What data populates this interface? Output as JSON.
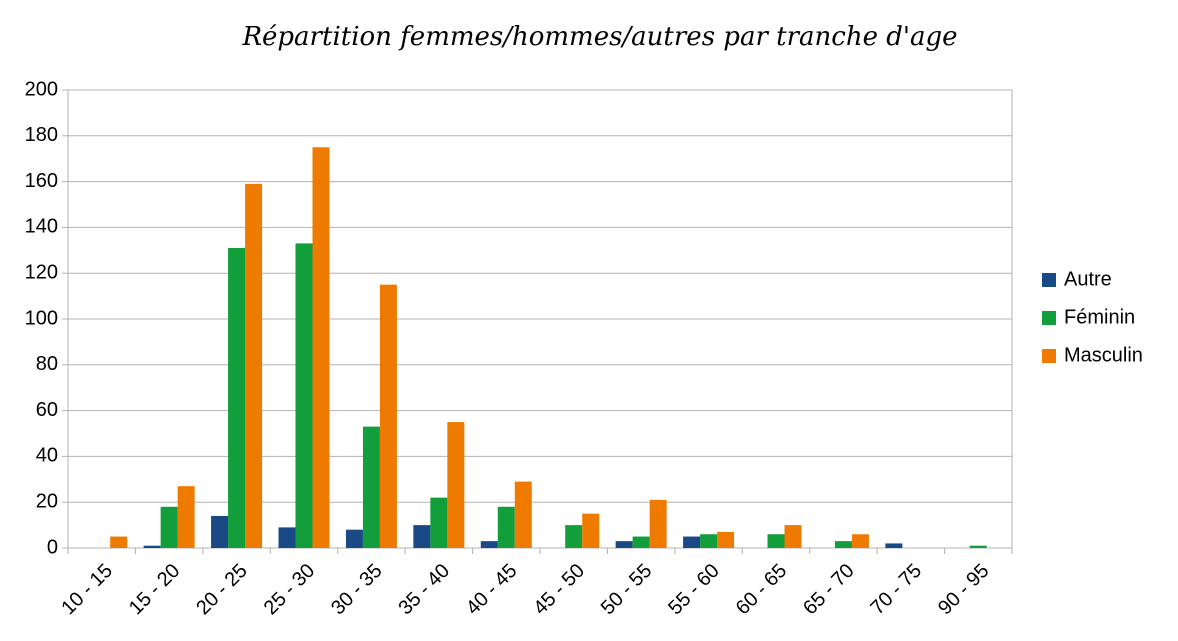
{
  "chart_data": {
    "type": "bar",
    "title": "Répartition femmes/hommes/autres par tranche d'age",
    "categories": [
      "10 - 15",
      "15 - 20",
      "20 - 25",
      "25 - 30",
      "30 - 35",
      "35 - 40",
      "40 - 45",
      "45 - 50",
      "50 - 55",
      "55 - 60",
      "60 - 65",
      "65 - 70",
      "70 - 75",
      "90 - 95"
    ],
    "series": [
      {
        "name": "Autre",
        "color": "#1a4a86",
        "values": [
          0,
          1,
          14,
          9,
          8,
          10,
          3,
          0,
          3,
          5,
          0,
          0,
          2,
          0
        ]
      },
      {
        "name": "Féminin",
        "color": "#129e3a",
        "values": [
          0,
          18,
          131,
          133,
          53,
          22,
          18,
          10,
          5,
          6,
          6,
          3,
          0,
          1
        ]
      },
      {
        "name": "Masculin",
        "color": "#ef7a00",
        "values": [
          5,
          27,
          159,
          175,
          115,
          55,
          29,
          15,
          21,
          7,
          10,
          6,
          0,
          0
        ]
      }
    ],
    "ylim": [
      0,
      200
    ],
    "yticks": [
      0,
      20,
      40,
      60,
      80,
      100,
      120,
      140,
      160,
      180,
      200
    ],
    "grid": true,
    "legend": "right"
  }
}
